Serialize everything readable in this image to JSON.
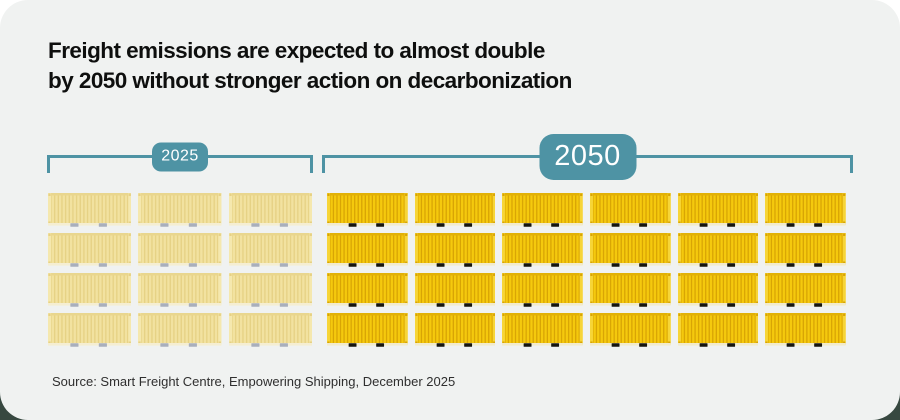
{
  "page": {
    "outer_top_bg": "#FFFFFF",
    "outer_bottom_bg": "#374840",
    "card_bg": "#F0F2F1",
    "accent_color": "#4E93A4",
    "title_color": "#0E0F0E"
  },
  "title": {
    "line1": "Freight emissions are expected to almost double",
    "line2": "by 2050 without stronger action on decarbonization"
  },
  "source": "Source: Smart Freight Centre, Empowering Shipping, December 2025",
  "chart_data": {
    "type": "pictogram",
    "title": "Freight emissions are expected to almost double by 2050 without stronger action on decarbonization",
    "unit_icon": "shipping-container",
    "categories": [
      "2025",
      "2050"
    ],
    "values": [
      12,
      24
    ],
    "legend_position": "top-brackets",
    "groups": [
      {
        "label": "2025",
        "count": 12,
        "columns": 3,
        "rows": 4,
        "colors": {
          "base": "#F2E2A0",
          "stripe": "#E6D184",
          "top": "#E9D68E",
          "post": "#F5E8AE",
          "bottom": "#F5EED2",
          "pocket": "#A9AFBC"
        }
      },
      {
        "label": "2050",
        "count": 24,
        "columns": 6,
        "rows": 4,
        "colors": {
          "base": "#F5C90D",
          "stripe": "#D8A404",
          "top": "#E2B106",
          "post": "#F7D537",
          "bottom": "#F2EBCC",
          "pocket": "#16150F"
        }
      }
    ]
  }
}
